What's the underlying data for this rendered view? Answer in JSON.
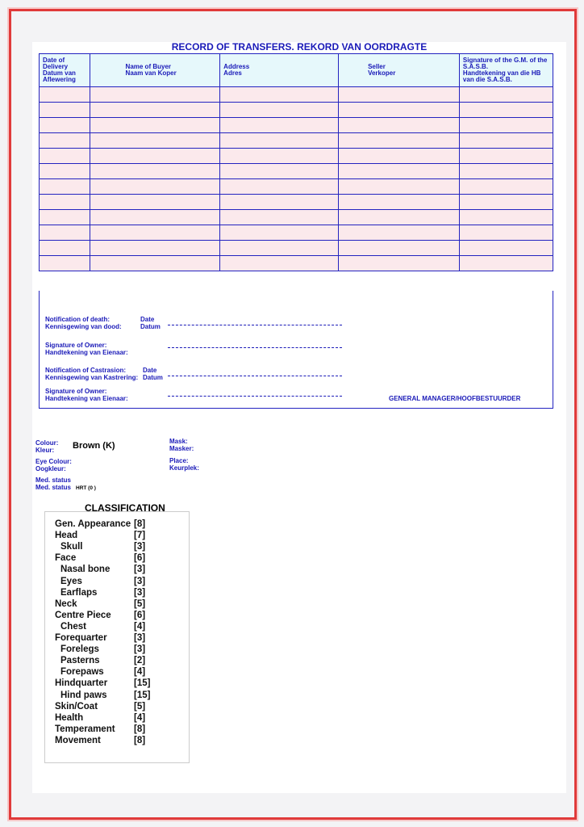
{
  "title": "RECORD OF TRANSFERS. REKORD VAN OORDRAGTE",
  "columns": [
    {
      "en": "Date of Delivery",
      "af": "Datum van Aflewering"
    },
    {
      "en": "Name of Buyer",
      "af": "Naam van Koper"
    },
    {
      "en": "Address",
      "af": "Adres"
    },
    {
      "en": "Seller",
      "af": "Verkoper"
    },
    {
      "en": "Signature of the G.M. of the S.A.S.B.",
      "af": "Handtekening van die HB van die S.A.S.B."
    }
  ],
  "notices": {
    "death_en": "Notification of death:",
    "death_af": "Kennisgewing van dood:",
    "date_en": "Date",
    "date_af": "Datum",
    "owner_en": "Signature of Owner:",
    "owner_af": "Handtekening van Eienaar:",
    "castr_en": "Notification of Castrasion:",
    "castr_af": "Kennisgewing van Kastrering:",
    "gm": "GENERAL MANAGER/HOOFBESTUURDER"
  },
  "details": {
    "colour_en": "Colour:",
    "colour_af": "Kleur:",
    "colour_value": "Brown  (K)",
    "mask_en": "Mask:",
    "mask_af": "Masker:",
    "eye_en": "Eye Colour:",
    "eye_af": "Oogkleur:",
    "place_en": "Place:",
    "place_af": "Keurplek:",
    "med1": "Med. status",
    "med2": "Med. status",
    "med_value": "HRT (0 )"
  },
  "classification": {
    "title": "CLASSIFICATION",
    "items": [
      {
        "label": "Gen. Appearance",
        "score": "[8]",
        "indent": 0
      },
      {
        "label": "Head",
        "score": "[7]",
        "indent": 0
      },
      {
        "label": "Skull",
        "score": "[3]",
        "indent": 1
      },
      {
        "label": "Face",
        "score": "[6]",
        "indent": 0
      },
      {
        "label": "Nasal bone",
        "score": "[3]",
        "indent": 1
      },
      {
        "label": "Eyes",
        "score": "[3]",
        "indent": 1
      },
      {
        "label": "Earflaps",
        "score": "[3]",
        "indent": 1
      },
      {
        "label": "Neck",
        "score": "[5]",
        "indent": 0
      },
      {
        "label": "Centre Piece",
        "score": "[6]",
        "indent": 0
      },
      {
        "label": "Chest",
        "score": "[4]",
        "indent": 1
      },
      {
        "label": "Forequarter",
        "score": "[3]",
        "indent": 0
      },
      {
        "label": "Forelegs",
        "score": "[3]",
        "indent": 1
      },
      {
        "label": "Pasterns",
        "score": "[2]",
        "indent": 1
      },
      {
        "label": "Forepaws",
        "score": "[4]",
        "indent": 1
      },
      {
        "label": "Hindquarter",
        "score": "[15]",
        "indent": 0
      },
      {
        "label": "Hind paws",
        "score": "[15]",
        "indent": 1
      },
      {
        "label": "Skin/Coat",
        "score": "[5]",
        "indent": 0
      },
      {
        "label": "Health",
        "score": "[4]",
        "indent": 0
      },
      {
        "label": "Temperament",
        "score": "[8]",
        "indent": 0
      },
      {
        "label": "Movement",
        "score": "[8]",
        "indent": 0
      }
    ]
  }
}
